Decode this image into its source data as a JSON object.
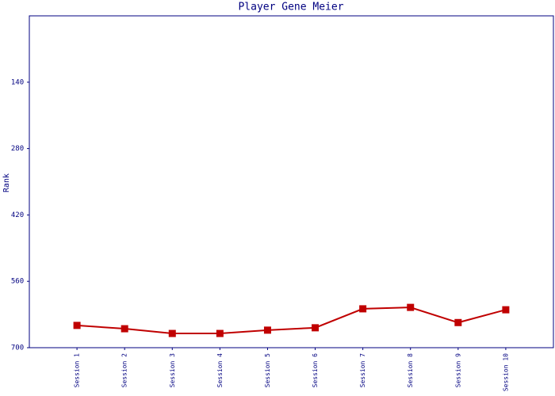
{
  "chart_data": {
    "type": "line",
    "title": "Player Gene Meier",
    "y_label": "Rank",
    "categories": [
      "Session 1",
      "Session 2",
      "Session 3",
      "Session 4",
      "Session 5",
      "Session 6",
      "Session 7",
      "Session 8",
      "Session 9",
      "Session 10"
    ],
    "series": [
      {
        "name": "Rank",
        "color": "#c00000",
        "values": [
          653,
          660,
          670,
          670,
          663,
          658,
          618,
          615,
          647,
          620
        ]
      }
    ],
    "ylim": [
      0,
      700
    ],
    "yticks": [
      140,
      280,
      420,
      560,
      700
    ],
    "y_inverted": true
  }
}
